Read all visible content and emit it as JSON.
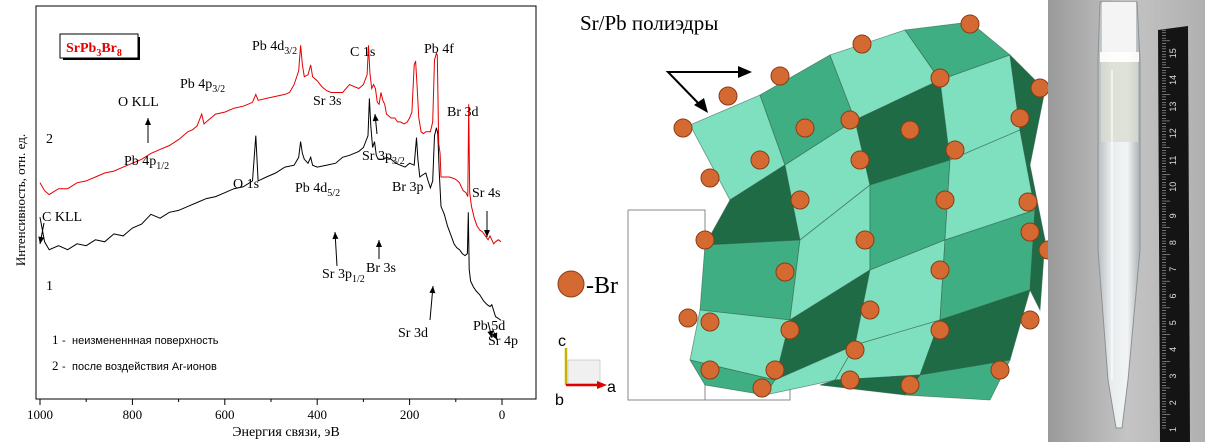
{
  "chart_data": {
    "type": "line",
    "xlabel": "Энергия связи, эВ",
    "ylabel": "Интенсивность, отн. ед.",
    "xlim": [
      1000,
      0
    ],
    "xticks": [
      1000,
      800,
      600,
      400,
      200,
      0
    ],
    "inset_label": {
      "base": "SrPb",
      "sub1": "3",
      "mid": "Br",
      "sub2": "8"
    },
    "series": [
      {
        "name": "1",
        "color": "#000000",
        "points": [
          [
            1000,
            185
          ],
          [
            990,
            160
          ],
          [
            980,
            152
          ],
          [
            960,
            156
          ],
          [
            940,
            152
          ],
          [
            920,
            158
          ],
          [
            900,
            156
          ],
          [
            880,
            162
          ],
          [
            860,
            160
          ],
          [
            840,
            168
          ],
          [
            820,
            166
          ],
          [
            800,
            174
          ],
          [
            780,
            178
          ],
          [
            760,
            188
          ],
          [
            750,
            186
          ],
          [
            740,
            184
          ],
          [
            720,
            190
          ],
          [
            700,
            192
          ],
          [
            680,
            196
          ],
          [
            660,
            200
          ],
          [
            640,
            204
          ],
          [
            620,
            206
          ],
          [
            600,
            210
          ],
          [
            580,
            214
          ],
          [
            560,
            216
          ],
          [
            540,
            222
          ],
          [
            533,
            268
          ],
          [
            528,
            222
          ],
          [
            510,
            226
          ],
          [
            490,
            230
          ],
          [
            470,
            236
          ],
          [
            450,
            238
          ],
          [
            440,
            246
          ],
          [
            436,
            262
          ],
          [
            432,
            250
          ],
          [
            428,
            244
          ],
          [
            420,
            240
          ],
          [
            414,
            246
          ],
          [
            410,
            238
          ],
          [
            400,
            236
          ],
          [
            380,
            238
          ],
          [
            360,
            240
          ],
          [
            345,
            246
          ],
          [
            330,
            248
          ],
          [
            310,
            252
          ],
          [
            300,
            256
          ],
          [
            290,
            268
          ],
          [
            287,
            306
          ],
          [
            284,
            278
          ],
          [
            280,
            256
          ],
          [
            276,
            262
          ],
          [
            272,
            248
          ],
          [
            268,
            244
          ],
          [
            262,
            244
          ],
          [
            256,
            244
          ],
          [
            250,
            246
          ],
          [
            240,
            244
          ],
          [
            230,
            240
          ],
          [
            220,
            238
          ],
          [
            210,
            236
          ],
          [
            200,
            240
          ],
          [
            190,
            238
          ],
          [
            185,
            266
          ],
          [
            182,
            244
          ],
          [
            178,
            226
          ],
          [
            172,
            228
          ],
          [
            165,
            230
          ],
          [
            160,
            222
          ],
          [
            155,
            215
          ],
          [
            150,
            222
          ],
          [
            146,
            268
          ],
          [
            142,
            276
          ],
          [
            139,
            270
          ],
          [
            136,
            232
          ],
          [
            132,
            196
          ],
          [
            125,
            188
          ],
          [
            118,
            176
          ],
          [
            110,
            166
          ],
          [
            104,
            158
          ],
          [
            98,
            154
          ],
          [
            92,
            152
          ],
          [
            86,
            148
          ],
          [
            80,
            146
          ],
          [
            75,
            148
          ],
          [
            73,
            190
          ],
          [
            71,
            132
          ],
          [
            68,
            120
          ],
          [
            62,
            114
          ],
          [
            56,
            110
          ],
          [
            48,
            106
          ],
          [
            40,
            100
          ],
          [
            32,
            96
          ],
          [
            26,
            94
          ],
          [
            22,
            96
          ],
          [
            18,
            90
          ],
          [
            14,
            84
          ],
          [
            8,
            82
          ],
          [
            2,
            80
          ]
        ]
      },
      {
        "name": "2",
        "color": "#e60000",
        "points": [
          [
            1000,
            220
          ],
          [
            990,
            212
          ],
          [
            980,
            208
          ],
          [
            960,
            214
          ],
          [
            940,
            214
          ],
          [
            920,
            220
          ],
          [
            900,
            222
          ],
          [
            880,
            226
          ],
          [
            860,
            230
          ],
          [
            840,
            232
          ],
          [
            820,
            236
          ],
          [
            800,
            240
          ],
          [
            780,
            244
          ],
          [
            760,
            250
          ],
          [
            740,
            254
          ],
          [
            720,
            258
          ],
          [
            700,
            264
          ],
          [
            690,
            268
          ],
          [
            680,
            272
          ],
          [
            670,
            274
          ],
          [
            660,
            278
          ],
          [
            650,
            290
          ],
          [
            645,
            280
          ],
          [
            640,
            282
          ],
          [
            630,
            286
          ],
          [
            620,
            290
          ],
          [
            600,
            292
          ],
          [
            580,
            296
          ],
          [
            560,
            298
          ],
          [
            550,
            300
          ],
          [
            540,
            302
          ],
          [
            533,
            310
          ],
          [
            528,
            304
          ],
          [
            510,
            306
          ],
          [
            490,
            308
          ],
          [
            470,
            310
          ],
          [
            460,
            312
          ],
          [
            450,
            320
          ],
          [
            440,
            334
          ],
          [
            436,
            360
          ],
          [
            432,
            340
          ],
          [
            428,
            328
          ],
          [
            420,
            330
          ],
          [
            414,
            340
          ],
          [
            410,
            328
          ],
          [
            400,
            324
          ],
          [
            390,
            318
          ],
          [
            380,
            314
          ],
          [
            370,
            312
          ],
          [
            360,
            312
          ],
          [
            345,
            312
          ],
          [
            330,
            320
          ],
          [
            310,
            316
          ],
          [
            300,
            320
          ],
          [
            292,
            330
          ],
          [
            289,
            360
          ],
          [
            286,
            332
          ],
          [
            282,
            316
          ],
          [
            278,
            320
          ],
          [
            274,
            316
          ],
          [
            270,
            302
          ],
          [
            266,
            300
          ],
          [
            262,
            312
          ],
          [
            258,
            304
          ],
          [
            254,
            300
          ],
          [
            250,
            290
          ],
          [
            240,
            286
          ],
          [
            232,
            286
          ],
          [
            226,
            282
          ],
          [
            220,
            282
          ],
          [
            212,
            280
          ],
          [
            205,
            282
          ],
          [
            200,
            286
          ],
          [
            195,
            292
          ],
          [
            190,
            340
          ],
          [
            187,
            344
          ],
          [
            184,
            320
          ],
          [
            180,
            286
          ],
          [
            175,
            272
          ],
          [
            170,
            270
          ],
          [
            165,
            272
          ],
          [
            160,
            272
          ],
          [
            155,
            272
          ],
          [
            150,
            282
          ],
          [
            146,
            345
          ],
          [
            142,
            352
          ],
          [
            140,
            350
          ],
          [
            137,
            260
          ],
          [
            134,
            250
          ],
          [
            132,
            226
          ],
          [
            126,
            226
          ],
          [
            120,
            226
          ],
          [
            114,
            226
          ],
          [
            108,
            225
          ],
          [
            102,
            224
          ],
          [
            96,
            222
          ],
          [
            92,
            220
          ],
          [
            88,
            216
          ],
          [
            84,
            212
          ],
          [
            78,
            210
          ],
          [
            74,
            206
          ],
          [
            72,
            300
          ],
          [
            70,
            210
          ],
          [
            66,
            196
          ],
          [
            60,
            184
          ],
          [
            54,
            176
          ],
          [
            48,
            172
          ],
          [
            42,
            170
          ],
          [
            36,
            166
          ],
          [
            30,
            162
          ],
          [
            26,
            166
          ],
          [
            22,
            162
          ],
          [
            18,
            158
          ],
          [
            14,
            160
          ],
          [
            8,
            162
          ],
          [
            2,
            160
          ]
        ]
      }
    ],
    "annotations": [
      {
        "text": "Pb 4d",
        "sub": "3/2"
      },
      {
        "text": "C 1s"
      },
      {
        "text": "Pb 4f"
      },
      {
        "text": "Pb 4p",
        "sub": "3/2"
      },
      {
        "text": "O KLL"
      },
      {
        "text": "Sr 3s"
      },
      {
        "text": "Br 3d"
      },
      {
        "text": "Sr 3p",
        "sub": "3/2"
      },
      {
        "text": "Pb 4p",
        "sub": "1/2"
      },
      {
        "text": "O 1s"
      },
      {
        "text": "Pb 4d",
        "sub": "5/2"
      },
      {
        "text": "Br 3p"
      },
      {
        "text": "Sr 4s"
      },
      {
        "text": "C KLL"
      },
      {
        "text": "Sr 3p",
        "sub": "1/2"
      },
      {
        "text": "Br 3s"
      },
      {
        "text": "Sr 3d"
      },
      {
        "text": "Pb 5d"
      },
      {
        "text": "Sr 4p"
      },
      {
        "text": "2"
      },
      {
        "text": "1"
      }
    ],
    "legend": [
      {
        "num": "1",
        "text": "неизмененнная поверхность"
      },
      {
        "num": "2",
        "text": "после воздействия Ar-ионов"
      }
    ]
  },
  "structure": {
    "title": "Sr/Pb полиэдры",
    "br_label": "-Br",
    "axes": {
      "c": "c",
      "a": "a",
      "b": "b"
    },
    "colors": {
      "polyhedra_light": "#7fe0bf",
      "polyhedra_mid": "#3fae82",
      "polyhedra_dark": "#1f6b45",
      "atom": "#d46a32",
      "axis_c": "#c8b400",
      "axis_a": "#e00000"
    }
  },
  "photo": {
    "ruler_ticks": [
      "1",
      "2",
      "3",
      "4",
      "5",
      "6",
      "7",
      "8",
      "9",
      "10",
      "11",
      "12",
      "13",
      "14",
      "15"
    ]
  }
}
